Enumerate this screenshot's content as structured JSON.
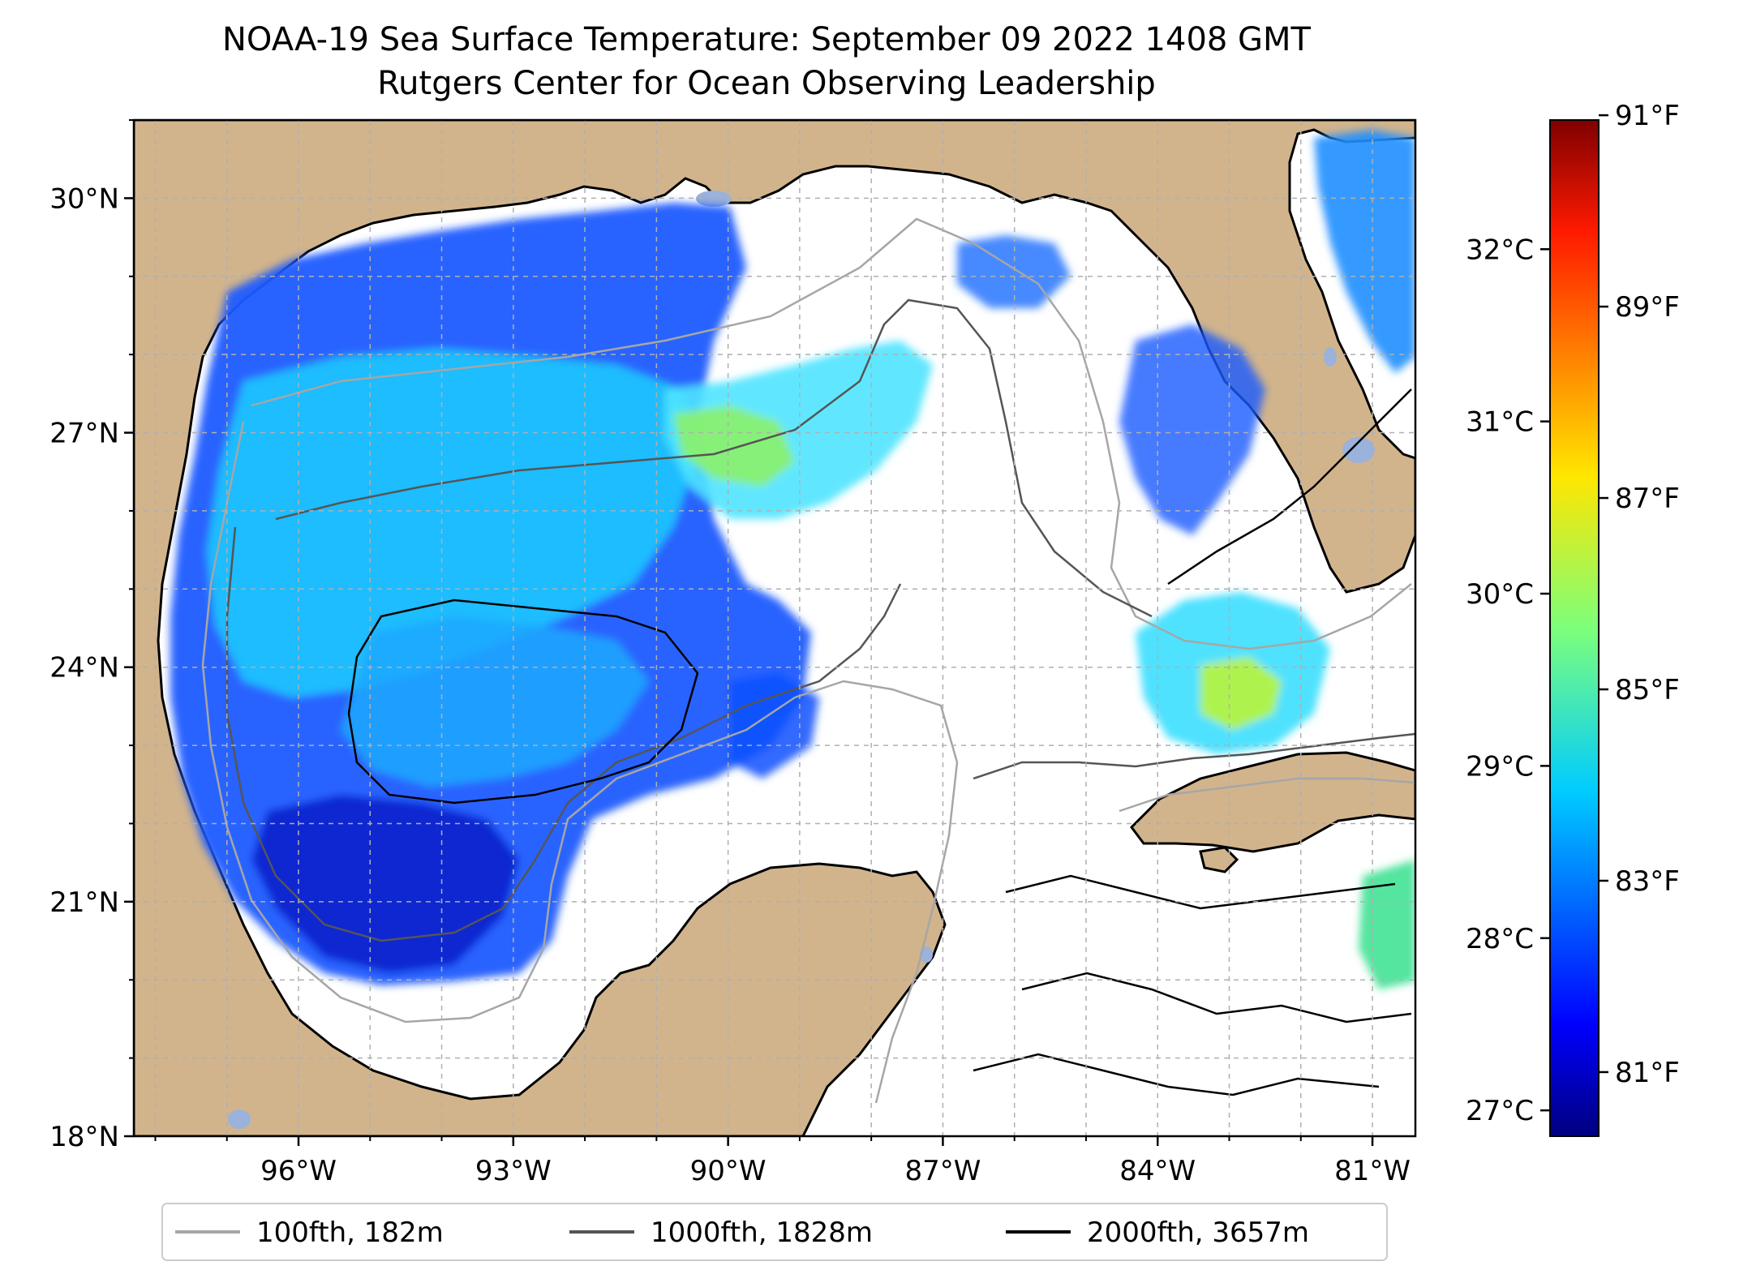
{
  "title": "NOAA-19 Sea Surface Temperature: September 09 2022 1408 GMT",
  "subtitle": "Rutgers Center for Ocean Observing Leadership",
  "chart_data": {
    "type": "heatmap",
    "map_extent": {
      "lon": [
        -98.3,
        -80.4
      ],
      "lat": [
        18.0,
        31.0
      ]
    },
    "lat_ticks": [
      {
        "value": 30,
        "label": "30°N"
      },
      {
        "value": 27,
        "label": "27°N"
      },
      {
        "value": 24,
        "label": "24°N"
      },
      {
        "value": 21,
        "label": "21°N"
      },
      {
        "value": 18,
        "label": "18°N"
      }
    ],
    "lon_ticks": [
      {
        "value": -96,
        "label": "96°W"
      },
      {
        "value": -93,
        "label": "93°W"
      },
      {
        "value": -90,
        "label": "90°W"
      },
      {
        "value": -87,
        "label": "87°W"
      },
      {
        "value": -84,
        "label": "84°W"
      },
      {
        "value": -81,
        "label": "81°W"
      }
    ],
    "colorbar": {
      "colormap": "jet",
      "range_c": [
        26.85,
        32.75
      ],
      "celsius_ticks": [
        {
          "value": 32,
          "label": "32°C"
        },
        {
          "value": 31,
          "label": "31°C"
        },
        {
          "value": 30,
          "label": "30°C"
        },
        {
          "value": 29,
          "label": "29°C"
        },
        {
          "value": 28,
          "label": "28°C"
        },
        {
          "value": 27,
          "label": "27°C"
        }
      ],
      "fahrenheit_ticks": [
        {
          "value": 91,
          "label": "91°F"
        },
        {
          "value": 89,
          "label": "89°F"
        },
        {
          "value": 87,
          "label": "87°F"
        },
        {
          "value": 85,
          "label": "85°F"
        },
        {
          "value": 83,
          "label": "83°F"
        },
        {
          "value": 81,
          "label": "81°F"
        }
      ]
    },
    "legend": {
      "placement": "bottom",
      "entries": [
        {
          "label": "100fth, 182m",
          "color": "#a6a6a6"
        },
        {
          "label": "1000fth, 1828m",
          "color": "#555555"
        },
        {
          "label": "2000fth, 3657m",
          "color": "#000000"
        }
      ]
    },
    "colors": {
      "land": "#d2b48c",
      "water": "#ffffff",
      "lakes": "#9ab2dc"
    },
    "grid": true
  }
}
